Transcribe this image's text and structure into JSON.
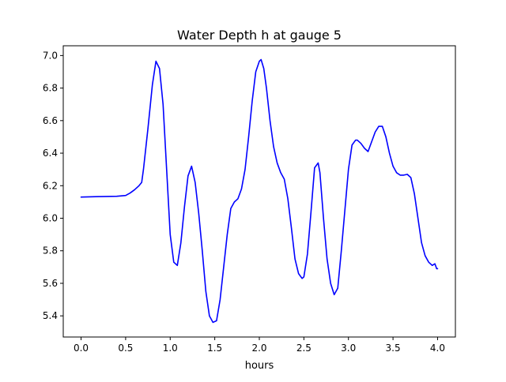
{
  "chart_data": {
    "type": "line",
    "title": "Water Depth h at gauge 5",
    "xlabel": "hours",
    "ylabel": "",
    "xlim": [
      -0.2,
      4.2
    ],
    "ylim": [
      5.27,
      7.06
    ],
    "xticks": [
      0.0,
      0.5,
      1.0,
      1.5,
      2.0,
      2.5,
      3.0,
      3.5,
      4.0
    ],
    "xtick_labels": [
      "0.0",
      "0.5",
      "1.0",
      "1.5",
      "2.0",
      "2.5",
      "3.0",
      "3.5",
      "4.0"
    ],
    "yticks": [
      5.4,
      5.6,
      5.8,
      6.0,
      6.2,
      6.4,
      6.6,
      6.8,
      7.0
    ],
    "ytick_labels": [
      "5.4",
      "5.6",
      "5.8",
      "6.0",
      "6.2",
      "6.4",
      "6.6",
      "6.8",
      "7.0"
    ],
    "grid": false,
    "legend": false,
    "line_color": "#0000ff",
    "series": [
      {
        "x": [
          0.0,
          0.2,
          0.4,
          0.5,
          0.55,
          0.6,
          0.65,
          0.68,
          0.7,
          0.75,
          0.8,
          0.84,
          0.88,
          0.92,
          0.96,
          1.0,
          1.04,
          1.08,
          1.12,
          1.16,
          1.2,
          1.24,
          1.28,
          1.32,
          1.36,
          1.4,
          1.44,
          1.48,
          1.52,
          1.56,
          1.6,
          1.64,
          1.68,
          1.72,
          1.76,
          1.8,
          1.84,
          1.88,
          1.92,
          1.96,
          2.0,
          2.02,
          2.05,
          2.08,
          2.12,
          2.16,
          2.2,
          2.24,
          2.28,
          2.32,
          2.36,
          2.4,
          2.44,
          2.48,
          2.5,
          2.54,
          2.58,
          2.62,
          2.66,
          2.68,
          2.72,
          2.76,
          2.8,
          2.84,
          2.88,
          2.92,
          2.96,
          3.0,
          3.04,
          3.08,
          3.1,
          3.14,
          3.18,
          3.22,
          3.26,
          3.3,
          3.34,
          3.38,
          3.42,
          3.46,
          3.5,
          3.54,
          3.58,
          3.62,
          3.66,
          3.7,
          3.74,
          3.78,
          3.82,
          3.86,
          3.9,
          3.94,
          3.97,
          3.99,
          4.0
        ],
        "y": [
          6.13,
          6.133,
          6.135,
          6.14,
          6.155,
          6.175,
          6.2,
          6.22,
          6.3,
          6.55,
          6.82,
          6.965,
          6.92,
          6.7,
          6.3,
          5.9,
          5.73,
          5.71,
          5.85,
          6.07,
          6.26,
          6.32,
          6.22,
          6.03,
          5.8,
          5.55,
          5.4,
          5.36,
          5.37,
          5.5,
          5.7,
          5.9,
          6.06,
          6.1,
          6.12,
          6.18,
          6.3,
          6.5,
          6.72,
          6.9,
          6.965,
          6.975,
          6.92,
          6.8,
          6.6,
          6.44,
          6.34,
          6.28,
          6.24,
          6.12,
          5.94,
          5.75,
          5.66,
          5.63,
          5.64,
          5.78,
          6.04,
          6.31,
          6.34,
          6.28,
          6.0,
          5.75,
          5.6,
          5.53,
          5.57,
          5.8,
          6.05,
          6.3,
          6.45,
          6.48,
          6.48,
          6.46,
          6.43,
          6.41,
          6.47,
          6.53,
          6.565,
          6.565,
          6.5,
          6.4,
          6.32,
          6.28,
          6.265,
          6.265,
          6.27,
          6.25,
          6.15,
          6.0,
          5.85,
          5.77,
          5.73,
          5.71,
          5.72,
          5.69,
          5.69
        ]
      }
    ]
  }
}
